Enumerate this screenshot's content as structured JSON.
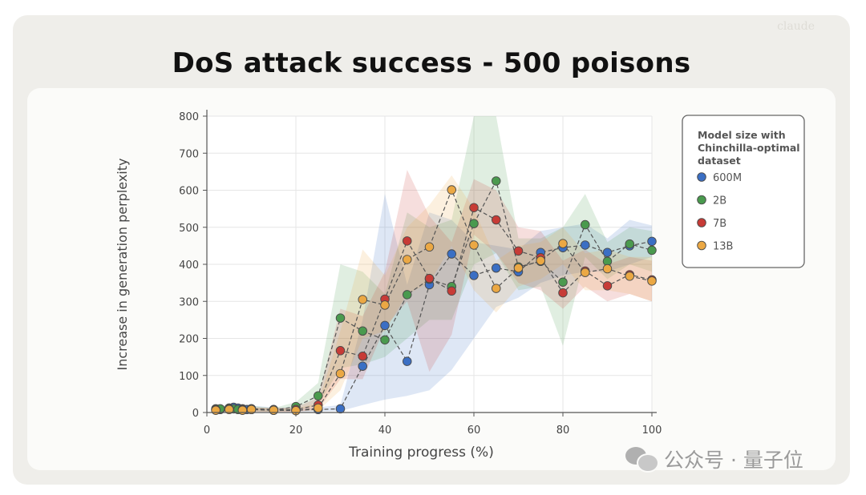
{
  "watermark_corner": "claude",
  "watermark": {
    "text": "公众号 · 量子位",
    "icon": "wechat-icon"
  },
  "chart_data": {
    "type": "line",
    "title": "DoS attack success - 500 poisons",
    "xlabel": "Training progress (%)",
    "ylabel": "Increase in generation perplexity",
    "xlim": [
      0,
      100
    ],
    "ylim": [
      0,
      800
    ],
    "xticks": [
      0,
      20,
      40,
      60,
      80,
      100
    ],
    "yticks": [
      0,
      100,
      200,
      300,
      400,
      500,
      600,
      700,
      800
    ],
    "grid": true,
    "legend": {
      "title": "Model size with Chinchilla-optimal dataset",
      "placement": "right"
    },
    "series": [
      {
        "name": "600M",
        "color": "#3b6fc4",
        "x": [
          2,
          3,
          5,
          6,
          7,
          8,
          9,
          10,
          15,
          20,
          25,
          30,
          35,
          40,
          45,
          50,
          55,
          60,
          65,
          70,
          75,
          80,
          85,
          90,
          95,
          100
        ],
        "y": [
          8,
          8,
          12,
          14,
          12,
          10,
          8,
          10,
          8,
          6,
          8,
          10,
          125,
          235,
          138,
          345,
          428,
          370,
          390,
          380,
          432,
          445,
          452,
          432,
          450,
          462
        ],
        "band_low": [
          2,
          2,
          4,
          5,
          4,
          3,
          2,
          3,
          2,
          2,
          3,
          4,
          20,
          35,
          45,
          60,
          115,
          200,
          285,
          310,
          350,
          370,
          380,
          380,
          400,
          420
        ],
        "band_high": [
          14,
          14,
          20,
          22,
          20,
          18,
          15,
          18,
          14,
          12,
          14,
          20,
          250,
          590,
          345,
          540,
          520,
          460,
          450,
          440,
          490,
          500,
          510,
          470,
          520,
          505
        ]
      },
      {
        "name": "2B",
        "color": "#4a9a4e",
        "x": [
          2,
          3,
          5,
          6,
          7,
          8,
          10,
          15,
          20,
          25,
          30,
          35,
          40,
          45,
          50,
          55,
          60,
          65,
          70,
          75,
          80,
          85,
          90,
          95,
          100
        ],
        "y": [
          10,
          10,
          12,
          10,
          8,
          8,
          10,
          6,
          16,
          45,
          255,
          220,
          196,
          318,
          360,
          340,
          510,
          625,
          393,
          408,
          352,
          507,
          408,
          455,
          438
        ],
        "band_low": [
          3,
          3,
          4,
          3,
          2,
          2,
          3,
          2,
          6,
          20,
          120,
          130,
          150,
          200,
          250,
          250,
          400,
          430,
          330,
          340,
          180,
          420,
          360,
          400,
          380
        ],
        "band_high": [
          18,
          18,
          20,
          18,
          15,
          15,
          18,
          12,
          28,
          80,
          400,
          380,
          320,
          540,
          500,
          520,
          800,
          800,
          470,
          470,
          500,
          590,
          460,
          500,
          490
        ]
      },
      {
        "name": "7B",
        "color": "#c73b36",
        "x": [
          2,
          5,
          8,
          10,
          15,
          20,
          25,
          30,
          35,
          40,
          45,
          50,
          55,
          60,
          65,
          70,
          75,
          80,
          85,
          90,
          95,
          100
        ],
        "y": [
          8,
          10,
          8,
          8,
          6,
          8,
          20,
          167,
          152,
          306,
          463,
          362,
          328,
          553,
          520,
          436,
          418,
          323,
          382,
          342,
          372,
          358
        ],
        "band_low": [
          2,
          3,
          2,
          2,
          2,
          2,
          8,
          90,
          90,
          230,
          300,
          110,
          210,
          480,
          430,
          350,
          330,
          280,
          340,
          300,
          320,
          300
        ],
        "band_high": [
          14,
          18,
          14,
          14,
          12,
          14,
          40,
          280,
          260,
          380,
          655,
          530,
          460,
          630,
          600,
          500,
          490,
          410,
          440,
          400,
          420,
          410
        ]
      },
      {
        "name": "13B",
        "color": "#eba844",
        "x": [
          2,
          5,
          8,
          10,
          15,
          20,
          25,
          30,
          35,
          40,
          45,
          50,
          55,
          60,
          65,
          70,
          75,
          80,
          85,
          90,
          95,
          100
        ],
        "y": [
          6,
          8,
          6,
          8,
          6,
          5,
          12,
          105,
          305,
          290,
          413,
          447,
          601,
          452,
          335,
          390,
          410,
          456,
          378,
          388,
          368,
          355
        ],
        "band_low": [
          2,
          3,
          2,
          3,
          2,
          2,
          5,
          60,
          200,
          220,
          320,
          350,
          450,
          330,
          270,
          340,
          360,
          400,
          330,
          330,
          320,
          300
        ],
        "band_high": [
          12,
          14,
          12,
          14,
          12,
          10,
          25,
          220,
          440,
          370,
          500,
          560,
          640,
          550,
          410,
          450,
          460,
          500,
          430,
          440,
          420,
          420
        ]
      }
    ]
  }
}
